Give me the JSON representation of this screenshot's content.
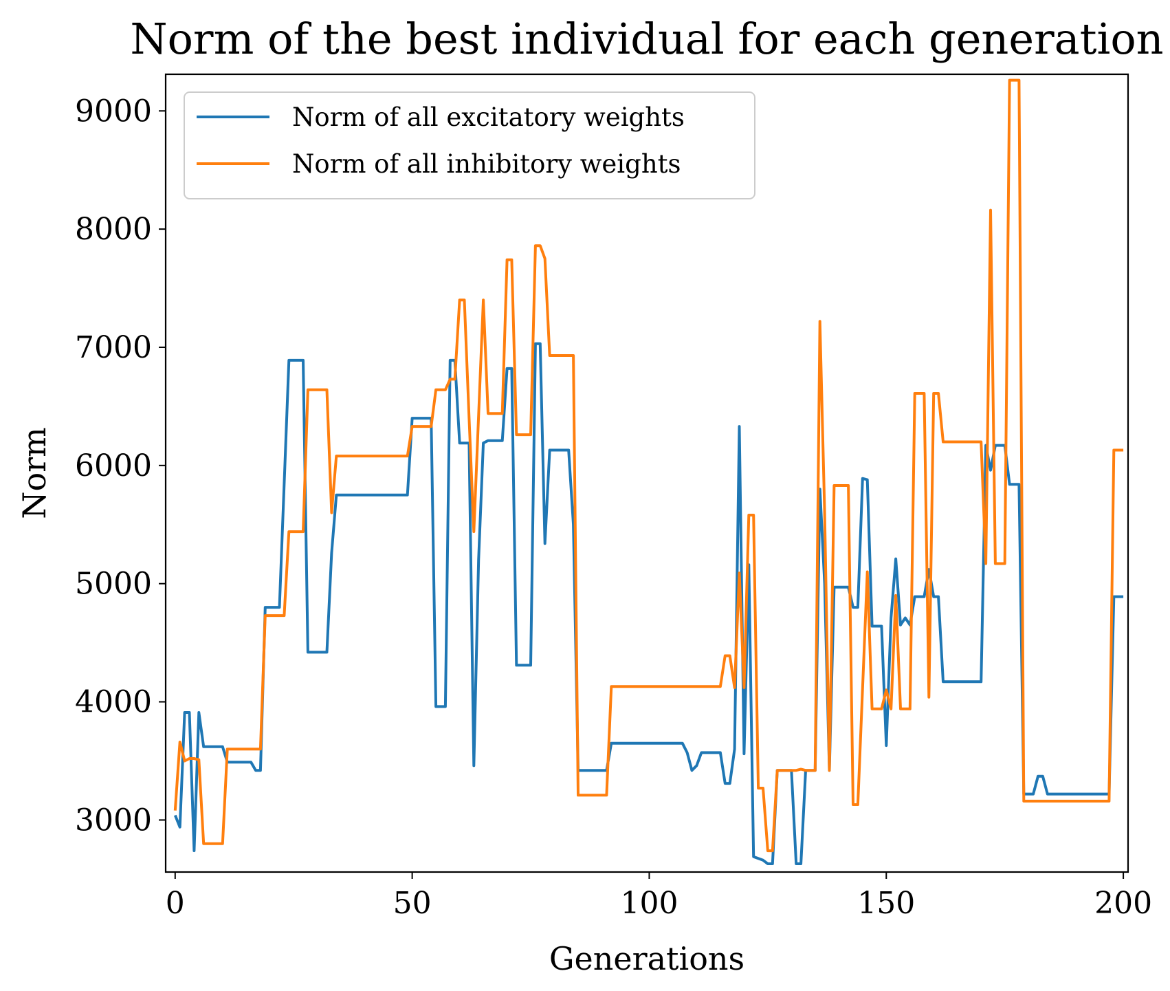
{
  "chart_data": {
    "type": "line",
    "title": "Norm of the best individual for each generation",
    "xlabel": "Generations",
    "ylabel": "Norm",
    "xlim": [
      -2,
      201
    ],
    "ylim": [
      2560,
      9310
    ],
    "xticks": [
      0,
      50,
      100,
      150,
      200
    ],
    "yticks": [
      3000,
      4000,
      5000,
      6000,
      7000,
      8000,
      9000
    ],
    "grid": false,
    "legend_position": "top-left",
    "series": [
      {
        "name": "Norm of all excitatory weights",
        "color": "#1f77b4",
        "points": [
          [
            0,
            3040
          ],
          [
            1,
            2940
          ],
          [
            2,
            3910
          ],
          [
            3,
            3910
          ],
          [
            4,
            2740
          ],
          [
            5,
            3910
          ],
          [
            6,
            3620
          ],
          [
            10,
            3620
          ],
          [
            11,
            3490
          ],
          [
            16,
            3490
          ],
          [
            17,
            3420
          ],
          [
            18,
            3420
          ],
          [
            19,
            4800
          ],
          [
            22,
            4800
          ],
          [
            24,
            6890
          ],
          [
            27,
            6890
          ],
          [
            28,
            4420
          ],
          [
            32,
            4420
          ],
          [
            33,
            5260
          ],
          [
            34,
            5750
          ],
          [
            49,
            5750
          ],
          [
            50,
            6400
          ],
          [
            54,
            6400
          ],
          [
            55,
            3960
          ],
          [
            57,
            3960
          ],
          [
            58,
            6890
          ],
          [
            59,
            6890
          ],
          [
            60,
            6190
          ],
          [
            62,
            6190
          ],
          [
            63,
            3460
          ],
          [
            64,
            5200
          ],
          [
            65,
            6190
          ],
          [
            66,
            6210
          ],
          [
            69,
            6210
          ],
          [
            70,
            6820
          ],
          [
            71,
            6820
          ],
          [
            72,
            4310
          ],
          [
            75,
            4310
          ],
          [
            76,
            7030
          ],
          [
            77,
            7030
          ],
          [
            78,
            5340
          ],
          [
            79,
            6130
          ],
          [
            83,
            6130
          ],
          [
            84,
            5500
          ],
          [
            85,
            3420
          ],
          [
            91,
            3420
          ],
          [
            92,
            3650
          ],
          [
            107,
            3650
          ],
          [
            108,
            3570
          ],
          [
            109,
            3420
          ],
          [
            110,
            3460
          ],
          [
            111,
            3570
          ],
          [
            115,
            3570
          ],
          [
            116,
            3310
          ],
          [
            117,
            3310
          ],
          [
            118,
            3600
          ],
          [
            119,
            6330
          ],
          [
            120,
            3560
          ],
          [
            121,
            5160
          ],
          [
            122,
            2690
          ],
          [
            124,
            2660
          ],
          [
            125,
            2630
          ],
          [
            126,
            2630
          ],
          [
            127,
            3420
          ],
          [
            130,
            3420
          ],
          [
            131,
            2630
          ],
          [
            132,
            2630
          ],
          [
            133,
            3420
          ],
          [
            135,
            3420
          ],
          [
            136,
            5800
          ],
          [
            137,
            5000
          ],
          [
            138,
            3420
          ],
          [
            139,
            4970
          ],
          [
            142,
            4970
          ],
          [
            143,
            4800
          ],
          [
            144,
            4800
          ],
          [
            145,
            5890
          ],
          [
            146,
            5880
          ],
          [
            147,
            4640
          ],
          [
            149,
            4640
          ],
          [
            150,
            3630
          ],
          [
            151,
            4710
          ],
          [
            152,
            5210
          ],
          [
            153,
            4650
          ],
          [
            154,
            4710
          ],
          [
            155,
            4650
          ],
          [
            156,
            4890
          ],
          [
            158,
            4890
          ],
          [
            159,
            5120
          ],
          [
            160,
            4890
          ],
          [
            161,
            4890
          ],
          [
            162,
            4170
          ],
          [
            170,
            4170
          ],
          [
            171,
            6170
          ],
          [
            172,
            5960
          ],
          [
            173,
            6170
          ],
          [
            175,
            6170
          ],
          [
            176,
            5840
          ],
          [
            178,
            5840
          ],
          [
            179,
            3220
          ],
          [
            181,
            3220
          ],
          [
            182,
            3370
          ],
          [
            183,
            3370
          ],
          [
            184,
            3220
          ],
          [
            196,
            3220
          ],
          [
            197,
            3220
          ],
          [
            198,
            4890
          ],
          [
            200,
            4890
          ]
        ]
      },
      {
        "name": "Norm of all inhibitory weights",
        "color": "#ff7f0e",
        "points": [
          [
            0,
            3080
          ],
          [
            1,
            3660
          ],
          [
            2,
            3500
          ],
          [
            3,
            3520
          ],
          [
            4,
            3520
          ],
          [
            5,
            3510
          ],
          [
            6,
            2800
          ],
          [
            10,
            2800
          ],
          [
            11,
            3600
          ],
          [
            18,
            3600
          ],
          [
            19,
            4730
          ],
          [
            23,
            4730
          ],
          [
            24,
            5440
          ],
          [
            27,
            5440
          ],
          [
            28,
            6640
          ],
          [
            32,
            6640
          ],
          [
            33,
            5600
          ],
          [
            34,
            6080
          ],
          [
            49,
            6080
          ],
          [
            50,
            6330
          ],
          [
            54,
            6330
          ],
          [
            55,
            6640
          ],
          [
            57,
            6640
          ],
          [
            58,
            6730
          ],
          [
            59,
            6730
          ],
          [
            60,
            7400
          ],
          [
            61,
            7400
          ],
          [
            62,
            6400
          ],
          [
            63,
            5440
          ],
          [
            65,
            7400
          ],
          [
            66,
            6440
          ],
          [
            69,
            6440
          ],
          [
            70,
            7740
          ],
          [
            71,
            7740
          ],
          [
            72,
            6260
          ],
          [
            75,
            6260
          ],
          [
            76,
            7860
          ],
          [
            77,
            7860
          ],
          [
            78,
            7750
          ],
          [
            79,
            6930
          ],
          [
            84,
            6930
          ],
          [
            85,
            3210
          ],
          [
            91,
            3210
          ],
          [
            92,
            4130
          ],
          [
            115,
            4130
          ],
          [
            116,
            4390
          ],
          [
            117,
            4390
          ],
          [
            118,
            4120
          ],
          [
            119,
            5090
          ],
          [
            120,
            4120
          ],
          [
            121,
            5580
          ],
          [
            122,
            5580
          ],
          [
            123,
            3270
          ],
          [
            124,
            3270
          ],
          [
            125,
            2740
          ],
          [
            126,
            2740
          ],
          [
            127,
            3420
          ],
          [
            131,
            3420
          ],
          [
            132,
            3430
          ],
          [
            133,
            3420
          ],
          [
            135,
            3420
          ],
          [
            136,
            7220
          ],
          [
            137,
            5600
          ],
          [
            138,
            3420
          ],
          [
            139,
            5830
          ],
          [
            142,
            5830
          ],
          [
            143,
            3130
          ],
          [
            144,
            3130
          ],
          [
            146,
            5100
          ],
          [
            147,
            3940
          ],
          [
            149,
            3940
          ],
          [
            150,
            4100
          ],
          [
            151,
            3940
          ],
          [
            152,
            4900
          ],
          [
            153,
            3940
          ],
          [
            155,
            3940
          ],
          [
            156,
            6610
          ],
          [
            158,
            6610
          ],
          [
            159,
            4040
          ],
          [
            160,
            6610
          ],
          [
            161,
            6610
          ],
          [
            162,
            6200
          ],
          [
            170,
            6200
          ],
          [
            171,
            5170
          ],
          [
            172,
            8160
          ],
          [
            173,
            5170
          ],
          [
            175,
            5170
          ],
          [
            176,
            9260
          ],
          [
            178,
            9260
          ],
          [
            179,
            3160
          ],
          [
            196,
            3160
          ],
          [
            197,
            3160
          ],
          [
            198,
            6130
          ],
          [
            200,
            6130
          ]
        ]
      }
    ]
  }
}
